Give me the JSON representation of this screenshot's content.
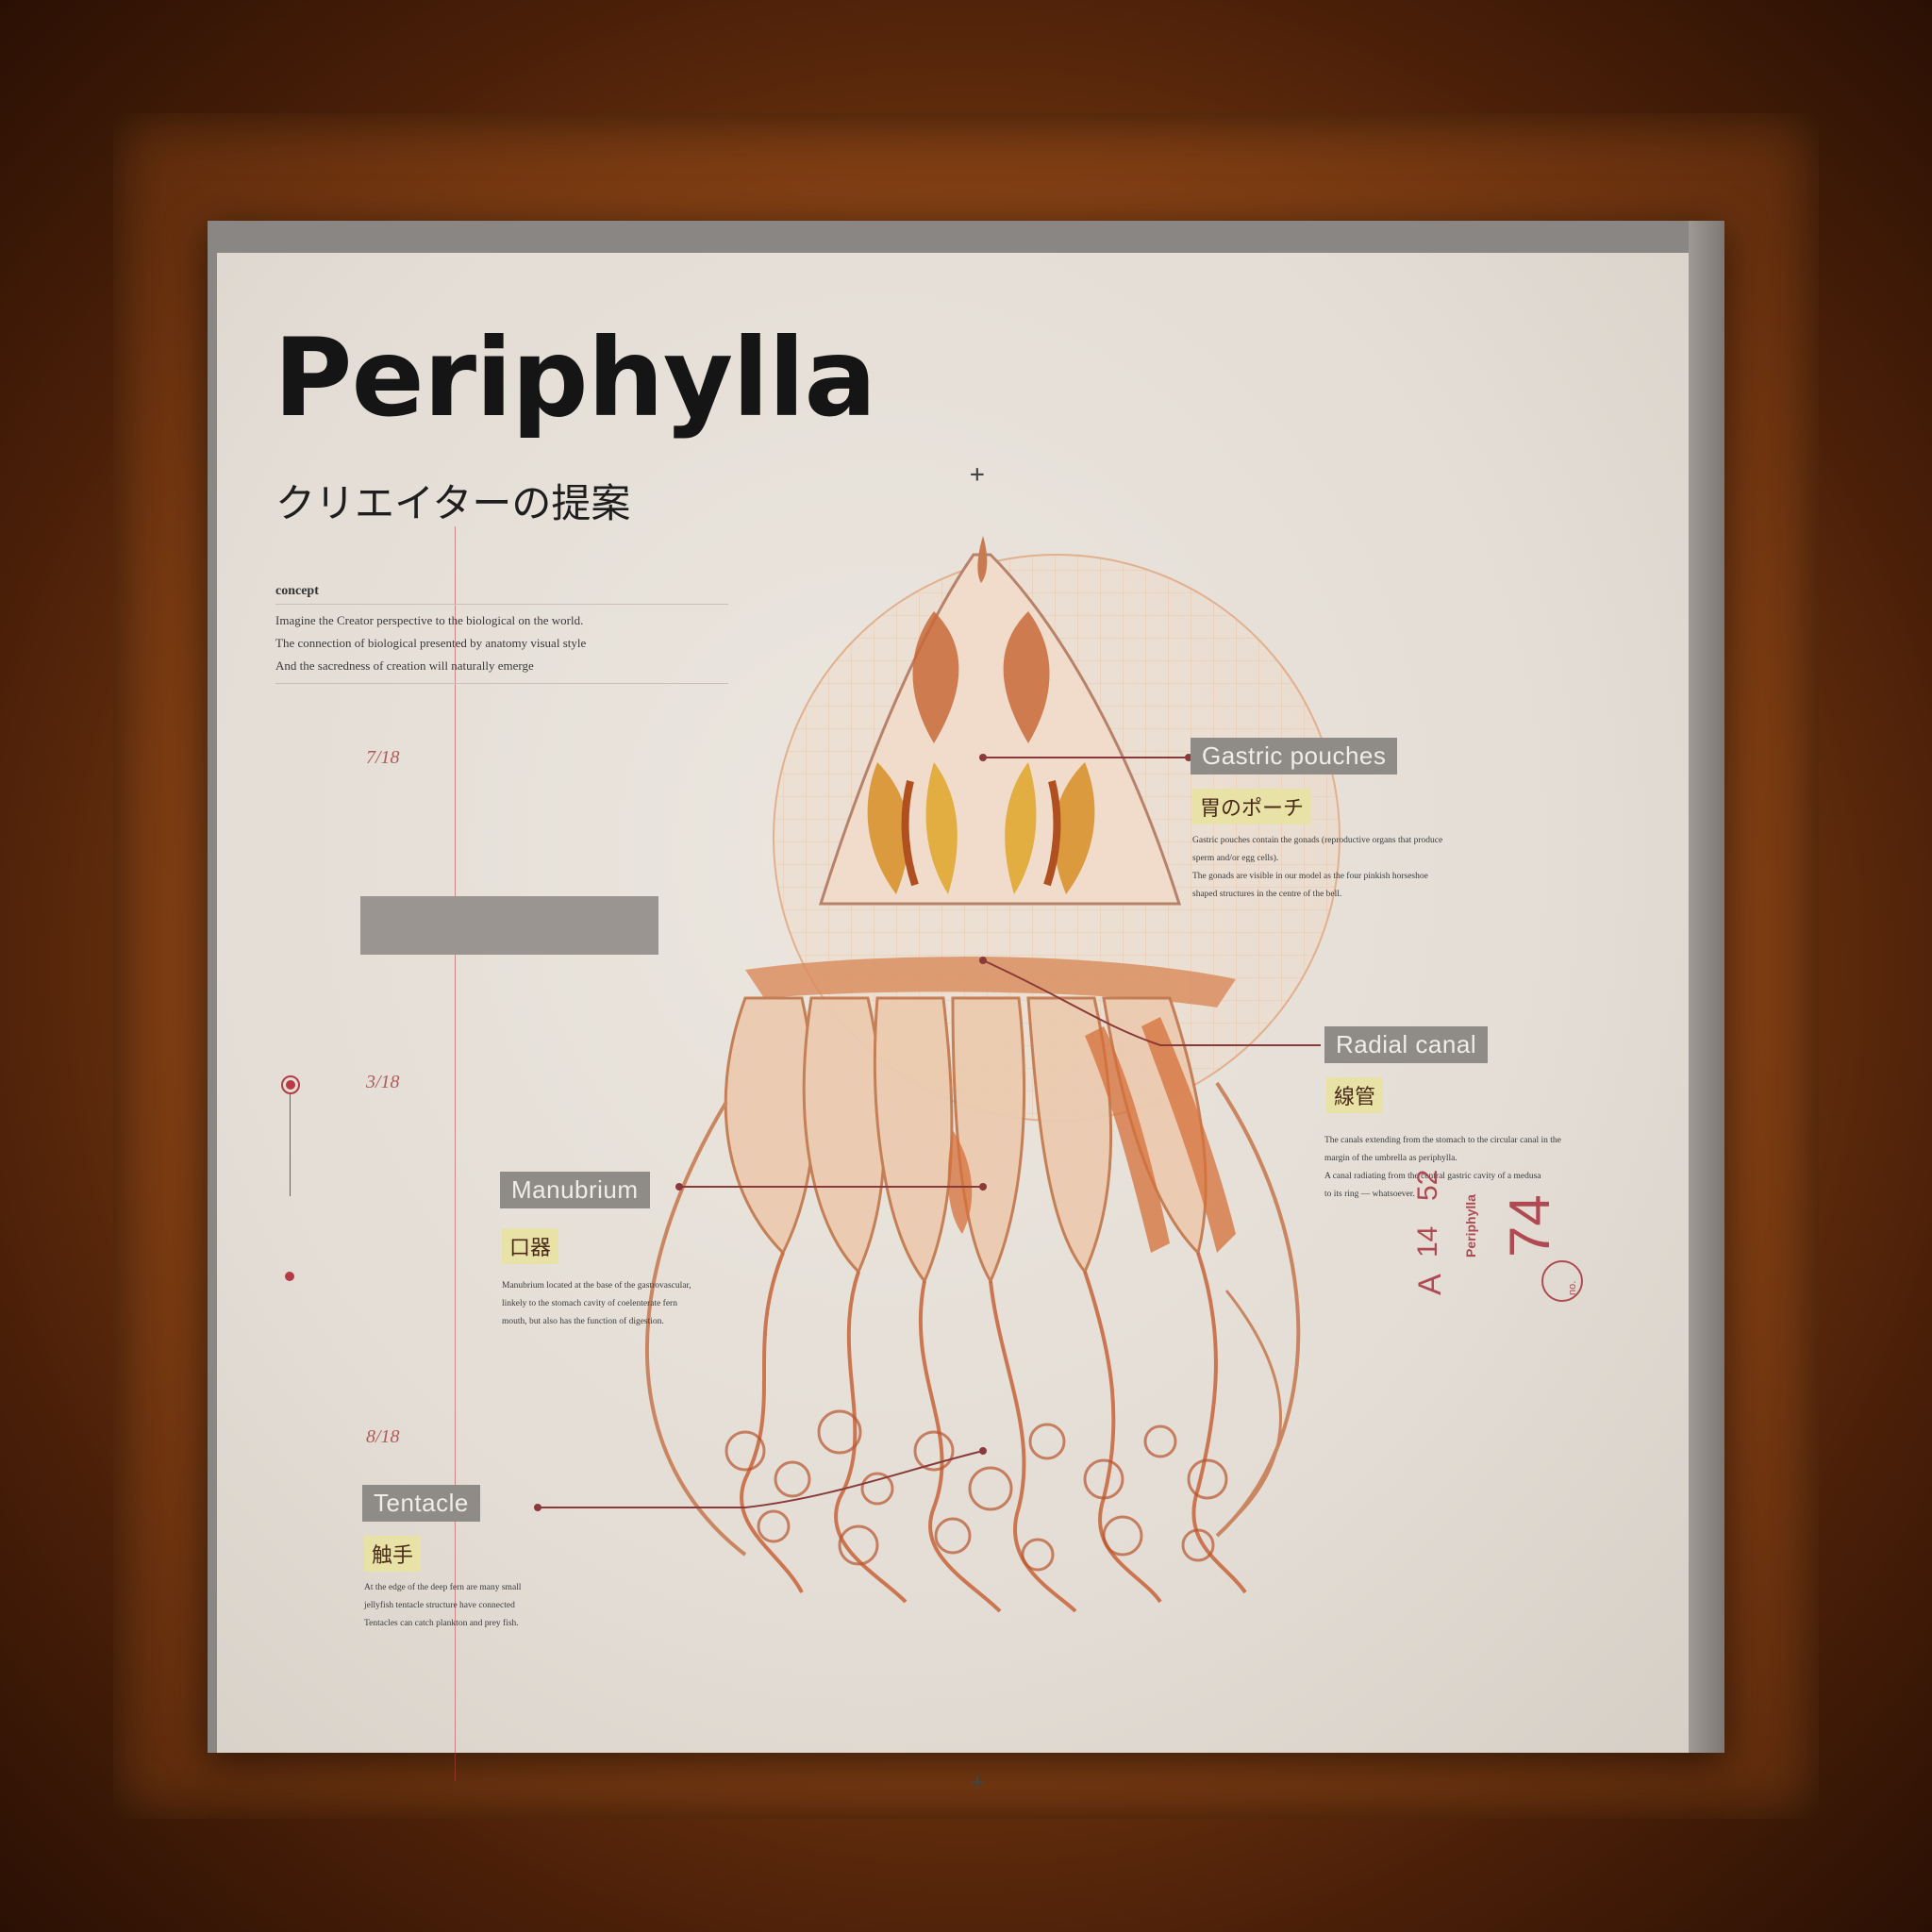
{
  "title": "Periphylla",
  "subtitle": "クリエイターの提案",
  "concept": {
    "label": "concept",
    "lines": [
      "Imagine the Creator perspective to the biological on the world.",
      "The connection of biological presented by anatomy visual style",
      "And the sacredness of creation will naturally emerge"
    ]
  },
  "dates": [
    "7/18",
    "3/18",
    "8/18"
  ],
  "labels": {
    "gastric": {
      "en": "Gastric pouches",
      "jp": "胃のポーチ",
      "desc": [
        "Gastric pouches contain the gonads (reproductive organs that produce",
        "sperm and/or egg cells).",
        "The gonads are visible in our model as the four pinkish horseshoe",
        "shaped structures in the centre of the bell."
      ]
    },
    "radial": {
      "en": "Radial canal",
      "jp": "線管",
      "desc": [
        "The canals extending from the stomach to the circular canal in the",
        "margin of the umbrella as periphylla.",
        "A canal radiating from the central gastric cavity of a medusa",
        "to its ring — whatsoever."
      ]
    },
    "manubrium": {
      "en": "Manubrium",
      "jp": "口器",
      "desc": [
        "Manubrium located at the base of the gastrovascular,",
        "linkely to the stomach cavity of coelenterate fern",
        "mouth, but also has the function of digestion."
      ]
    },
    "tentacle": {
      "en": "Tentacle",
      "jp": "触手",
      "desc": [
        "At the edge of the deep fern are many small",
        "jellyfish tentacle structure have connected",
        "Tentacles can catch plankton and prey fish."
      ]
    }
  },
  "stamp": {
    "letter": "A",
    "num1": "14",
    "num2": "52",
    "name": "Periphylla",
    "big": "74",
    "no": "no."
  },
  "colors": {
    "accent": "#b83a44",
    "paper": "#e6e0d8",
    "frame": "#7a3a12",
    "label": "#8f8b87",
    "jp_highlight": "#e9e2a6",
    "jelly": "#c86a3a"
  }
}
